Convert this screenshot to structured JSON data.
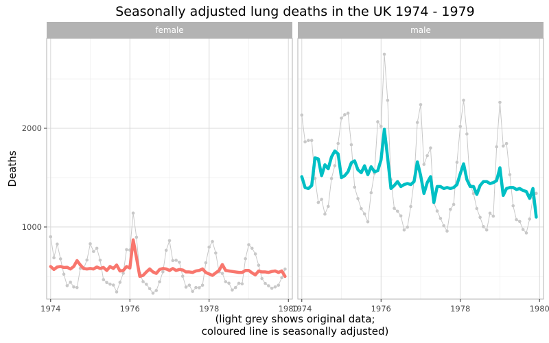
{
  "chart_data": {
    "type": "line",
    "title": "Seasonally adjusted lung deaths in the UK 1974 - 1979",
    "xlabel_line1": "(light grey shows original data;",
    "xlabel_line2": "coloured line is seasonally adjusted)",
    "ylabel": "Deaths",
    "xlim": [
      1973.9,
      1980.1
    ],
    "ylim": [
      270,
      2910
    ],
    "x_ticks": [
      1974,
      1976,
      1978,
      1980
    ],
    "y_ticks": [
      1000,
      2000
    ],
    "grid": true,
    "x_start": 1974.0,
    "x_step": 0.08333,
    "colors": {
      "original": "#c8c8c8",
      "female": "#f8766d",
      "male": "#00bfc4",
      "strip_bg": "#b3b3b3",
      "grid_major": "#d9d9d9",
      "grid_minor": "#ececec",
      "panel_border": "#b3b3b3"
    },
    "panels": [
      {
        "name": "female",
        "original": [
          901,
          689,
          827,
          677,
          522,
          406,
          441,
          393,
          387,
          582,
          578,
          666,
          830,
          752,
          785,
          664,
          467,
          438,
          421,
          412,
          343,
          440,
          531,
          771,
          767,
          1141,
          896,
          532,
          447,
          420,
          376,
          330,
          357,
          445,
          546,
          764,
          862,
          660,
          663,
          643,
          502,
          392,
          411,
          348,
          387,
          385,
          411,
          638,
          796,
          853,
          737,
          546,
          530,
          446,
          431,
          362,
          387,
          430,
          425,
          679,
          821,
          785,
          727,
          612,
          478,
          429,
          405,
          379,
          393,
          411,
          487,
          574
        ],
        "adjusted": [
          600,
          570,
          595,
          600,
          590,
          592,
          575,
          600,
          660,
          615,
          580,
          575,
          580,
          575,
          595,
          580,
          590,
          560,
          600,
          580,
          615,
          555,
          560,
          600,
          585,
          870,
          690,
          500,
          510,
          545,
          575,
          545,
          530,
          570,
          580,
          575,
          560,
          580,
          560,
          570,
          565,
          545,
          545,
          540,
          555,
          560,
          575,
          540,
          525,
          510,
          535,
          560,
          620,
          560,
          555,
          550,
          545,
          540,
          540,
          560,
          560,
          535,
          515,
          555,
          545,
          545,
          540,
          550,
          555,
          540,
          555,
          500
        ]
      },
      {
        "name": "male",
        "original": [
          2134,
          1863,
          1877,
          1877,
          1492,
          1249,
          1280,
          1131,
          1209,
          1492,
          1621,
          1846,
          2103,
          2137,
          2153,
          1833,
          1403,
          1288,
          1186,
          1133,
          1053,
          1347,
          1545,
          2066,
          2020,
          2750,
          2283,
          1479,
          1189,
          1160,
          1113,
          970,
          999,
          1208,
          1467,
          2059,
          2240,
          1634,
          1722,
          1801,
          1246,
          1162,
          1087,
          1013,
          959,
          1179,
          1229,
          1655,
          2019,
          2284,
          1942,
          1423,
          1340,
          1187,
          1098,
          1004,
          970,
          1140,
          1110,
          1812,
          2263,
          1820,
          1846,
          1531,
          1215,
          1075,
          1056,
          975,
          940,
          1081,
          1294,
          1341
        ],
        "adjusted": [
          1510,
          1400,
          1390,
          1420,
          1700,
          1690,
          1520,
          1630,
          1590,
          1710,
          1770,
          1740,
          1500,
          1520,
          1560,
          1650,
          1670,
          1580,
          1550,
          1620,
          1530,
          1610,
          1560,
          1570,
          1680,
          1990,
          1700,
          1390,
          1420,
          1460,
          1410,
          1430,
          1440,
          1430,
          1460,
          1660,
          1520,
          1340,
          1450,
          1510,
          1250,
          1410,
          1410,
          1390,
          1400,
          1390,
          1400,
          1430,
          1540,
          1640,
          1480,
          1410,
          1410,
          1330,
          1420,
          1460,
          1460,
          1440,
          1450,
          1470,
          1600,
          1320,
          1390,
          1400,
          1400,
          1380,
          1390,
          1370,
          1360,
          1290,
          1390,
          1100
        ]
      }
    ]
  }
}
